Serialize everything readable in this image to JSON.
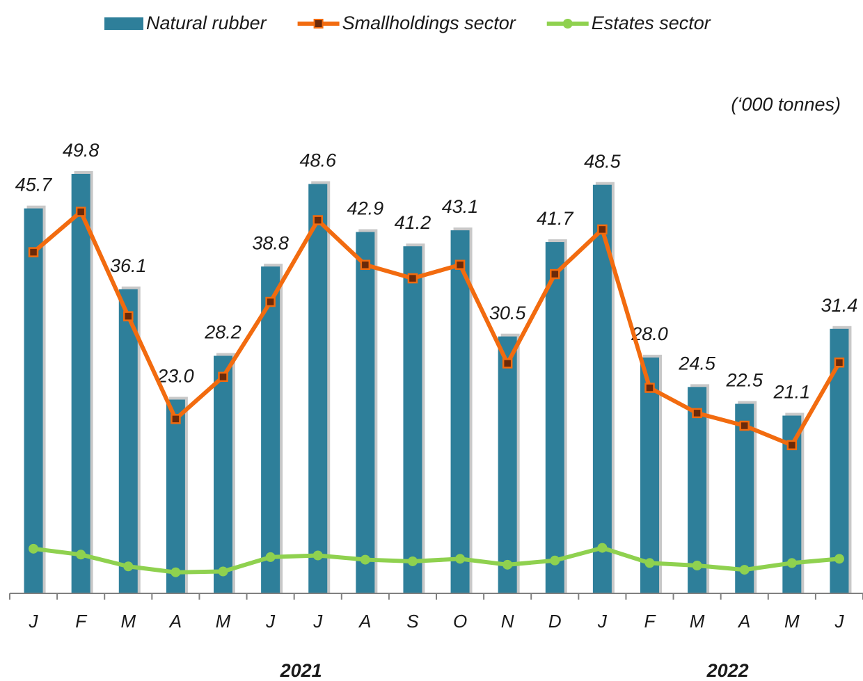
{
  "chart_data": {
    "type": "bar_line",
    "unit_label": "(‘000 tonnes)",
    "categories": [
      "J",
      "F",
      "M",
      "A",
      "M",
      "J",
      "J",
      "A",
      "S",
      "O",
      "N",
      "D",
      "J",
      "F",
      "M",
      "A",
      "M",
      "J"
    ],
    "x_group_labels": [
      "2021",
      "2022"
    ],
    "ylim": [
      0,
      55
    ],
    "series": [
      {
        "name": "Natural rubber",
        "type": "bar",
        "color": "#2e7f9a",
        "values": [
          45.7,
          49.8,
          36.1,
          23.0,
          28.2,
          38.8,
          48.6,
          42.9,
          41.2,
          43.1,
          30.5,
          41.7,
          48.5,
          28.0,
          24.5,
          22.5,
          21.1,
          31.4
        ],
        "value_labels": [
          "45.7",
          "49.8",
          "36.1",
          "23.0",
          "28.2",
          "38.8",
          "48.6",
          "42.9",
          "41.2",
          "43.1",
          "30.5",
          "41.7",
          "48.5",
          "28.0",
          "24.5",
          "22.5",
          "21.1",
          "31.4"
        ]
      },
      {
        "name": "Smallholdings sector",
        "type": "line",
        "color": "#f26b0f",
        "marker": "square",
        "values": [
          40.5,
          45.3,
          32.9,
          20.7,
          25.7,
          34.6,
          44.3,
          39.0,
          37.4,
          39.0,
          27.3,
          37.9,
          43.2,
          24.4,
          21.4,
          19.9,
          17.6,
          27.4
        ]
      },
      {
        "name": "Estates sector",
        "type": "line",
        "color": "#8fd14f",
        "marker": "circle",
        "values": [
          5.3,
          4.6,
          3.2,
          2.5,
          2.6,
          4.3,
          4.5,
          4.0,
          3.8,
          4.1,
          3.4,
          3.9,
          5.4,
          3.6,
          3.3,
          2.8,
          3.6,
          4.1
        ]
      }
    ]
  }
}
